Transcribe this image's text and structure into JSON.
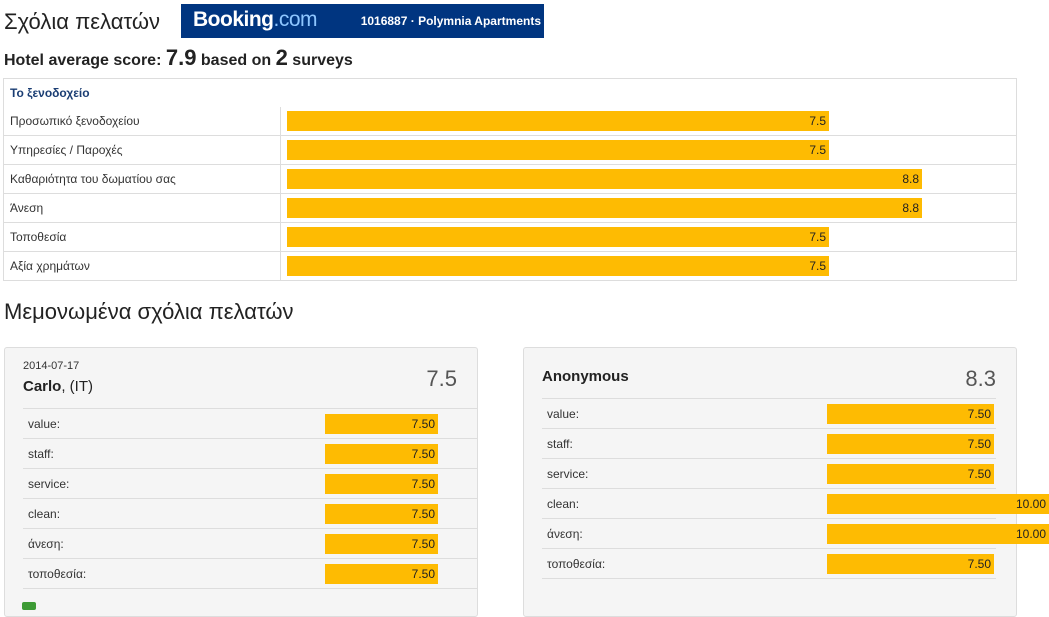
{
  "header": {
    "title": "Σχόλια πελατών",
    "brand_main": "Booking",
    "brand_dot": ".com",
    "hotel": "1016887 · Polymnia Apartments"
  },
  "average": {
    "prefix": "Hotel average score:",
    "score": "7.9",
    "mid": "based on",
    "surveys": "2",
    "suffix": "surveys"
  },
  "categories": {
    "heading": "Το ξενοδοχείο",
    "items": [
      {
        "label": "Προσωπικό ξενοδοχείου",
        "value": "7.5"
      },
      {
        "label": "Υπηρεσίες / Παροχές",
        "value": "7.5"
      },
      {
        "label": "Καθαριότητα του δωματίου σας",
        "value": "8.8"
      },
      {
        "label": "Άνεση",
        "value": "8.8"
      },
      {
        "label": "Τοποθεσία",
        "value": "7.5"
      },
      {
        "label": "Αξία χρημάτων",
        "value": "7.5"
      }
    ]
  },
  "reviews_title": "Μεμονωμένα σχόλια πελατών",
  "reviews": [
    {
      "date": "2014-07-17",
      "name": "Carlo",
      "country": ", (IT)",
      "score": "7.5",
      "rows": [
        {
          "label": "value:",
          "value": "7.50"
        },
        {
          "label": "staff:",
          "value": "7.50"
        },
        {
          "label": "service:",
          "value": "7.50"
        },
        {
          "label": "clean:",
          "value": "7.50"
        },
        {
          "label": "άνεση:",
          "value": "7.50"
        },
        {
          "label": "τοποθεσία:",
          "value": "7.50"
        }
      ]
    },
    {
      "name": "Anonymous",
      "score": "8.3",
      "rows": [
        {
          "label": "value:",
          "value": "7.50"
        },
        {
          "label": "staff:",
          "value": "7.50"
        },
        {
          "label": "service:",
          "value": "7.50"
        },
        {
          "label": "clean:",
          "value": "10.00"
        },
        {
          "label": "άνεση:",
          "value": "10.00"
        },
        {
          "label": "τοποθεσία:",
          "value": "7.50"
        }
      ]
    }
  ],
  "colors": {
    "bar": "#febb02",
    "brand": "#003580"
  }
}
